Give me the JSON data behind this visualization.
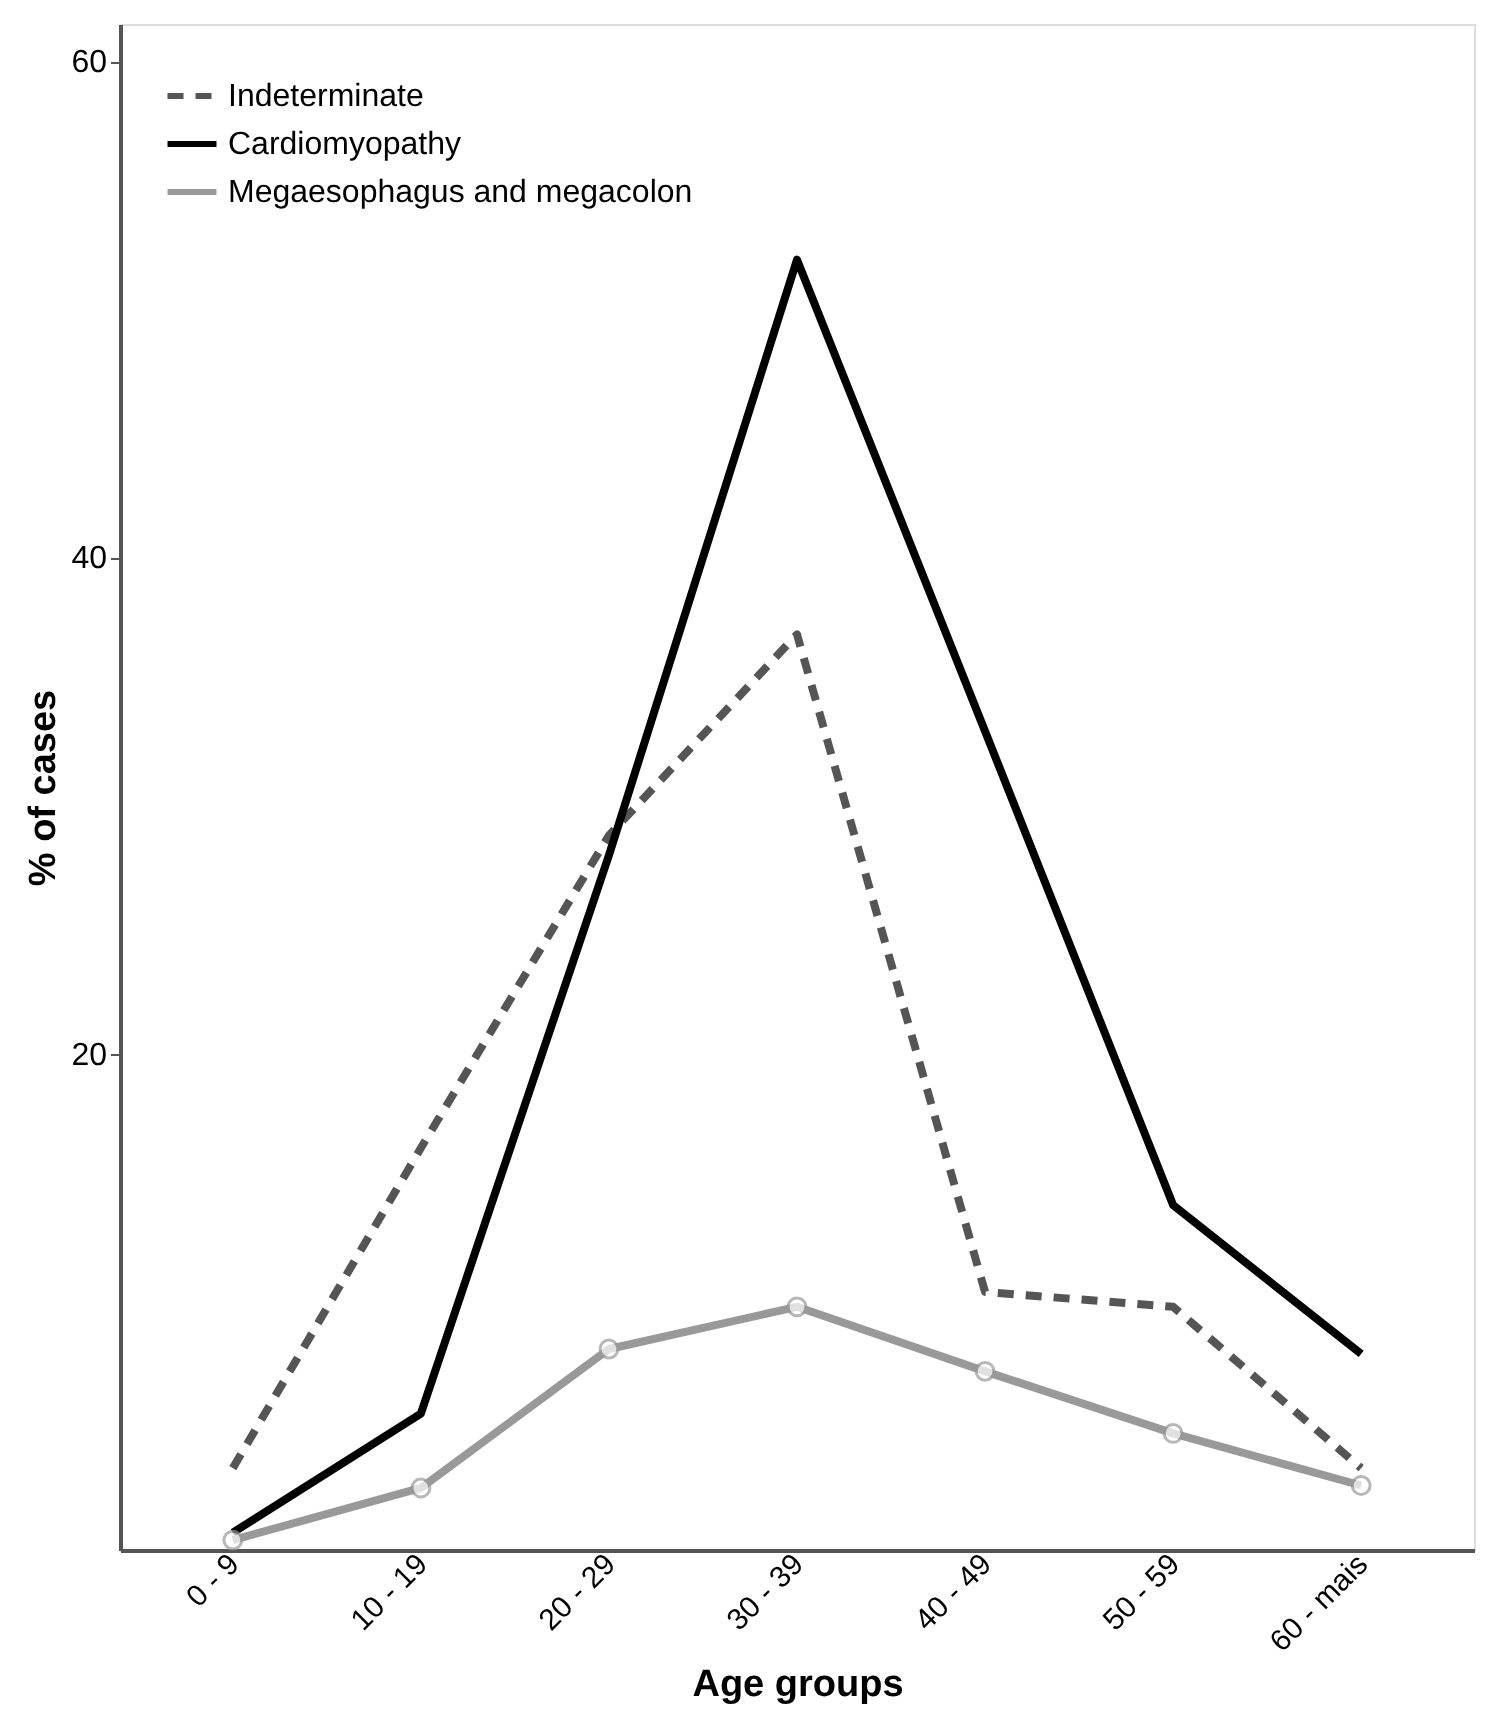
{
  "chart_data": {
    "type": "line",
    "xlabel": "Age groups",
    "ylabel": "% of cases",
    "categories": [
      "0 - 9",
      "10 - 19",
      "20 - 29",
      "30 - 39",
      "40 - 49",
      "50 - 59",
      "60 - mais"
    ],
    "ylim": [
      0,
      61.5
    ],
    "yticks": [
      20,
      40,
      60
    ],
    "grid": false,
    "legend": "top left",
    "series": [
      {
        "name": "Indeterminate",
        "color": "#555555",
        "line_style": "dashed",
        "marker": "none",
        "values": [
          3.3,
          16.2,
          28.8,
          36.9,
          10.4,
          9.8,
          3.3
        ]
      },
      {
        "name": "Cardiomyopathy",
        "color": "#000000",
        "line_style": "solid",
        "marker": "none",
        "values": [
          0.7,
          5.5,
          28.0,
          52.0,
          33.0,
          13.9,
          7.9
        ]
      },
      {
        "name": "Megaesophagus and megacolon",
        "color": "#999999",
        "line_style": "solid",
        "marker": "circle",
        "values": [
          0.4,
          2.5,
          8.1,
          9.8,
          7.2,
          4.7,
          2.6
        ]
      }
    ]
  }
}
